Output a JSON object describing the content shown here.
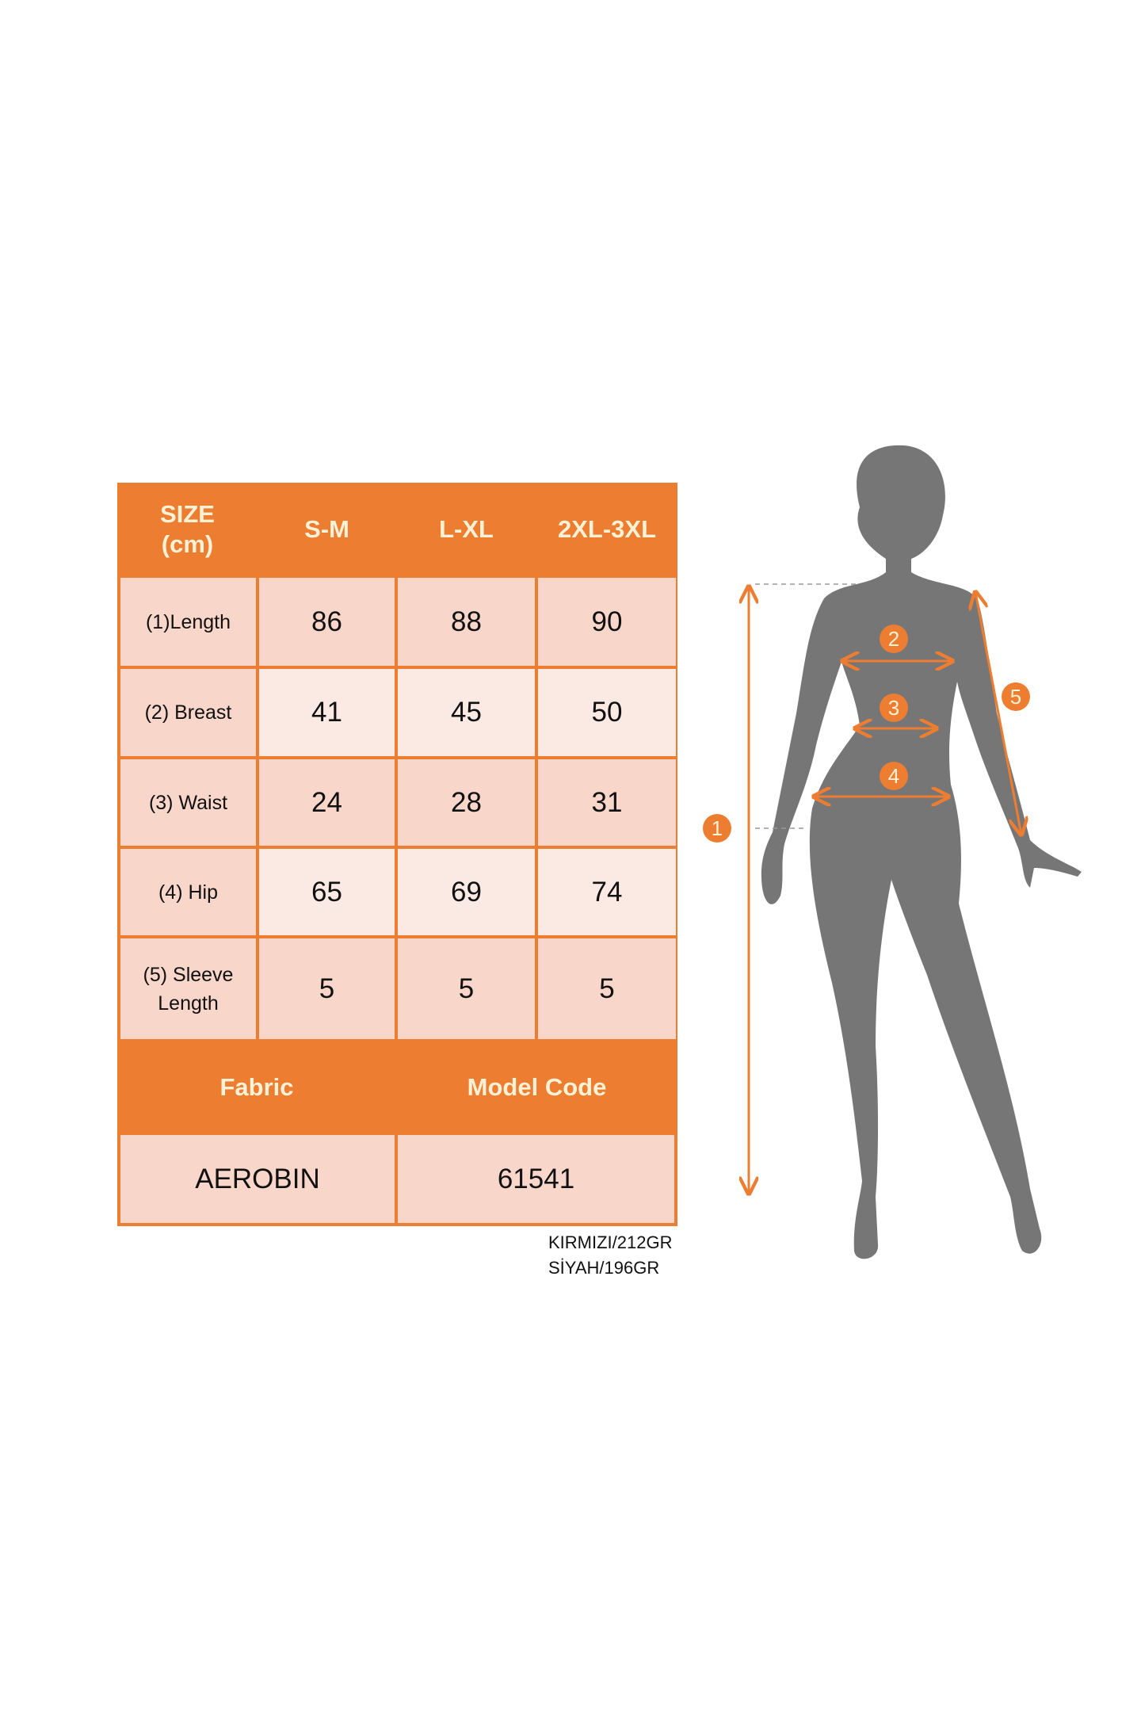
{
  "table": {
    "header": [
      "SIZE (cm)",
      "S-M",
      "L-XL",
      "2XL-3XL"
    ],
    "rows": [
      {
        "label": "(1)Length",
        "values": [
          "86",
          "88",
          "90"
        ]
      },
      {
        "label": "(2) Breast",
        "values": [
          "41",
          "45",
          "50"
        ]
      },
      {
        "label": "(3) Waist",
        "values": [
          "24",
          "28",
          "31"
        ]
      },
      {
        "label": "(4) Hip",
        "values": [
          "65",
          "69",
          "74"
        ]
      },
      {
        "label": "(5) Sleeve Length",
        "values": [
          "5",
          "5",
          "5"
        ]
      }
    ],
    "footer_header": [
      "Fabric",
      "Model Code"
    ],
    "footer_values": [
      "AEROBIN",
      "61541"
    ]
  },
  "note": [
    "KIRMIZI/212GR",
    "SİYAH/196GR"
  ],
  "figure": {
    "markers": [
      "1",
      "2",
      "3",
      "4",
      "5"
    ]
  },
  "colors": {
    "accent": "#ed7d31",
    "cell_dark": "#f8d6ca",
    "cell_light": "#fbe9e4",
    "silhouette": "#767676",
    "header_text": "#fdf1d6"
  }
}
